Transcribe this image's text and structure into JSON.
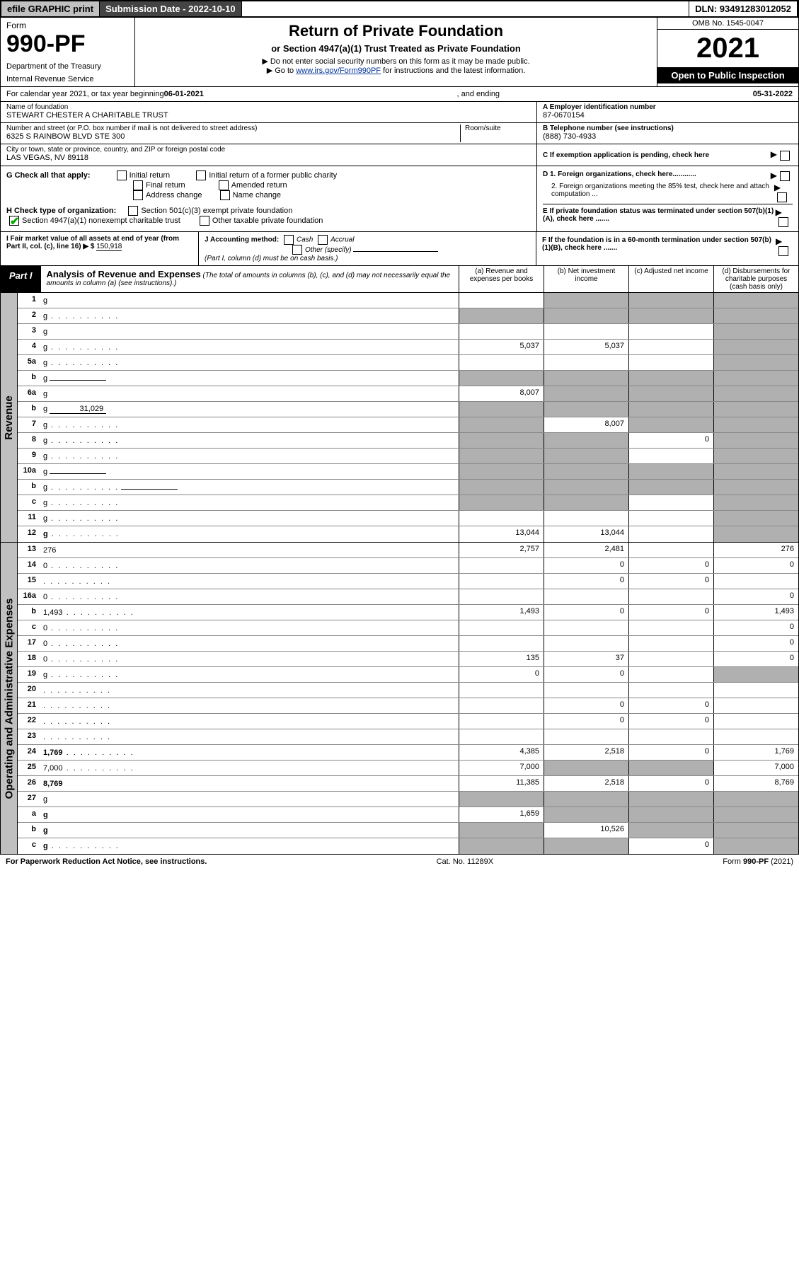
{
  "top": {
    "efile": "efile GRAPHIC print",
    "sub_label": "Submission Date - 2022-10-10",
    "dln": "DLN: 93491283012052"
  },
  "head": {
    "form_label": "Form",
    "form_no": "990-PF",
    "dept": "Department of the Treasury",
    "irs": "Internal Revenue Service",
    "title": "Return of Private Foundation",
    "subtitle": "or Section 4947(a)(1) Trust Treated as Private Foundation",
    "instr1": "▶ Do not enter social security numbers on this form as it may be made public.",
    "instr2_pre": "▶ Go to ",
    "instr2_link": "www.irs.gov/Form990PF",
    "instr2_post": " for instructions and the latest information.",
    "omb": "OMB No. 1545-0047",
    "year": "2021",
    "inspect": "Open to Public Inspection"
  },
  "cal": {
    "label": "For calendar year 2021, or tax year beginning ",
    "begin": "06-01-2021",
    "mid": " , and ending ",
    "end": "05-31-2022"
  },
  "ident": {
    "name_lbl": "Name of foundation",
    "name": "STEWART CHESTER A CHARITABLE TRUST",
    "addr_lbl": "Number and street (or P.O. box number if mail is not delivered to street address)",
    "addr": "6325 S RAINBOW BLVD STE 300",
    "room_lbl": "Room/suite",
    "city_lbl": "City or town, state or province, country, and ZIP or foreign postal code",
    "city": "LAS VEGAS, NV  89118",
    "a_lbl": "A Employer identification number",
    "a_val": "87-0670154",
    "b_lbl": "B Telephone number (see instructions)",
    "b_val": "(888) 730-4933",
    "c_lbl": "C If exemption application is pending, check here"
  },
  "g": {
    "label": "G Check all that apply:",
    "opts": [
      "Initial return",
      "Initial return of a former public charity",
      "Final return",
      "Amended return",
      "Address change",
      "Name change"
    ]
  },
  "h": {
    "label": "H Check type of organization:",
    "o1": "Section 501(c)(3) exempt private foundation",
    "o2": "Section 4947(a)(1) nonexempt charitable trust",
    "o3": "Other taxable private foundation"
  },
  "d": {
    "d1": "D 1. Foreign organizations, check here............",
    "d2": "2. Foreign organizations meeting the 85% test, check here and attach computation ...",
    "e": "E  If private foundation status was terminated under section 507(b)(1)(A), check here .......",
    "f": "F  If the foundation is in a 60-month termination under section 507(b)(1)(B), check here ......."
  },
  "fmv": {
    "i_lbl": "I Fair market value of all assets at end of year (from Part II, col. (c), line 16) ▶ $",
    "i_val": "150,918",
    "j_lbl": "J Accounting method:",
    "j_cash": "Cash",
    "j_accr": "Accrual",
    "j_other": "Other (specify)",
    "j_note": "(Part I, column (d) must be on cash basis.)"
  },
  "part1": {
    "label": "Part I",
    "title": "Analysis of Revenue and Expenses",
    "note": " (The total of amounts in columns (b), (c), and (d) may not necessarily equal the amounts in column (a) (see instructions).)",
    "col_a": "(a)   Revenue and expenses per books",
    "col_b": "(b)   Net investment income",
    "col_c": "(c)   Adjusted net income",
    "col_d": "(d)   Disbursements for charitable purposes (cash basis only)"
  },
  "sections": [
    {
      "label": "Revenue",
      "rows": [
        {
          "n": "1",
          "d": "g",
          "a": "",
          "b": "g",
          "c": "g"
        },
        {
          "n": "2",
          "d": "g",
          "dots": true,
          "a": "g",
          "b": "g",
          "c": "g",
          "bold_not": true
        },
        {
          "n": "3",
          "d": "g",
          "a": "",
          "b": "",
          "c": ""
        },
        {
          "n": "4",
          "d": "g",
          "dots": true,
          "a": "5,037",
          "b": "5,037",
          "c": ""
        },
        {
          "n": "5a",
          "d": "g",
          "dots": true,
          "a": "",
          "b": "",
          "c": ""
        },
        {
          "n": "b",
          "d": "g",
          "inline": "",
          "a": "g",
          "b": "g",
          "c": "g"
        },
        {
          "n": "6a",
          "d": "g",
          "a": "8,007",
          "b": "g",
          "c": "g"
        },
        {
          "n": "b",
          "d": "g",
          "inline": "31,029",
          "a": "g",
          "b": "g",
          "c": "g"
        },
        {
          "n": "7",
          "d": "g",
          "dots": true,
          "a": "g",
          "b": "8,007",
          "c": "g"
        },
        {
          "n": "8",
          "d": "g",
          "dots": true,
          "a": "g",
          "b": "g",
          "c": "0"
        },
        {
          "n": "9",
          "d": "g",
          "dots": true,
          "a": "g",
          "b": "g",
          "c": ""
        },
        {
          "n": "10a",
          "d": "g",
          "inline": "",
          "a": "g",
          "b": "g",
          "c": "g"
        },
        {
          "n": "b",
          "d": "g",
          "dots": true,
          "inline": "",
          "a": "g",
          "b": "g",
          "c": "g"
        },
        {
          "n": "c",
          "d": "g",
          "dots": true,
          "a": "g",
          "b": "g",
          "c": ""
        },
        {
          "n": "11",
          "d": "g",
          "dots": true,
          "a": "",
          "b": "",
          "c": ""
        },
        {
          "n": "12",
          "d": "g",
          "dots": true,
          "bold": true,
          "a": "13,044",
          "b": "13,044",
          "c": ""
        }
      ]
    },
    {
      "label": "Operating and Administrative Expenses",
      "rows": [
        {
          "n": "13",
          "d": "276",
          "a": "2,757",
          "b": "2,481",
          "c": ""
        },
        {
          "n": "14",
          "d": "0",
          "dots": true,
          "a": "",
          "b": "0",
          "c": "0"
        },
        {
          "n": "15",
          "d": "",
          "dots": true,
          "a": "",
          "b": "0",
          "c": "0"
        },
        {
          "n": "16a",
          "d": "0",
          "dots": true,
          "a": "",
          "b": "",
          "c": ""
        },
        {
          "n": "b",
          "d": "1,493",
          "dots": true,
          "a": "1,493",
          "b": "0",
          "c": "0"
        },
        {
          "n": "c",
          "d": "0",
          "dots": true,
          "a": "",
          "b": "",
          "c": ""
        },
        {
          "n": "17",
          "d": "0",
          "dots": true,
          "a": "",
          "b": "",
          "c": ""
        },
        {
          "n": "18",
          "d": "0",
          "dots": true,
          "a": "135",
          "b": "37",
          "c": ""
        },
        {
          "n": "19",
          "d": "g",
          "dots": true,
          "a": "0",
          "b": "0",
          "c": ""
        },
        {
          "n": "20",
          "d": "",
          "dots": true,
          "a": "",
          "b": "",
          "c": ""
        },
        {
          "n": "21",
          "d": "",
          "dots": true,
          "a": "",
          "b": "0",
          "c": "0"
        },
        {
          "n": "22",
          "d": "",
          "dots": true,
          "a": "",
          "b": "0",
          "c": "0"
        },
        {
          "n": "23",
          "d": "",
          "dots": true,
          "a": "",
          "b": "",
          "c": ""
        },
        {
          "n": "24",
          "d": "1,769",
          "dots": true,
          "bold": true,
          "a": "4,385",
          "b": "2,518",
          "c": "0"
        },
        {
          "n": "25",
          "d": "7,000",
          "dots": true,
          "a": "7,000",
          "b": "g",
          "c": "g"
        },
        {
          "n": "26",
          "d": "8,769",
          "bold": true,
          "a": "11,385",
          "b": "2,518",
          "c": "0"
        },
        {
          "n": "27",
          "d": "g",
          "a": "g",
          "b": "g",
          "c": "g"
        },
        {
          "n": "a",
          "d": "g",
          "bold": true,
          "a": "1,659",
          "b": "g",
          "c": "g"
        },
        {
          "n": "b",
          "d": "g",
          "bold": true,
          "a": "g",
          "b": "10,526",
          "c": "g"
        },
        {
          "n": "c",
          "d": "g",
          "dots": true,
          "bold": true,
          "a": "g",
          "b": "g",
          "c": "0"
        }
      ]
    }
  ],
  "footer": {
    "left": "For Paperwork Reduction Act Notice, see instructions.",
    "mid": "Cat. No. 11289X",
    "right": "Form 990-PF (2021)"
  },
  "colors": {
    "grey_bg": "#b0b0b0",
    "header_grey": "#c0c0c0",
    "link": "#003399"
  }
}
